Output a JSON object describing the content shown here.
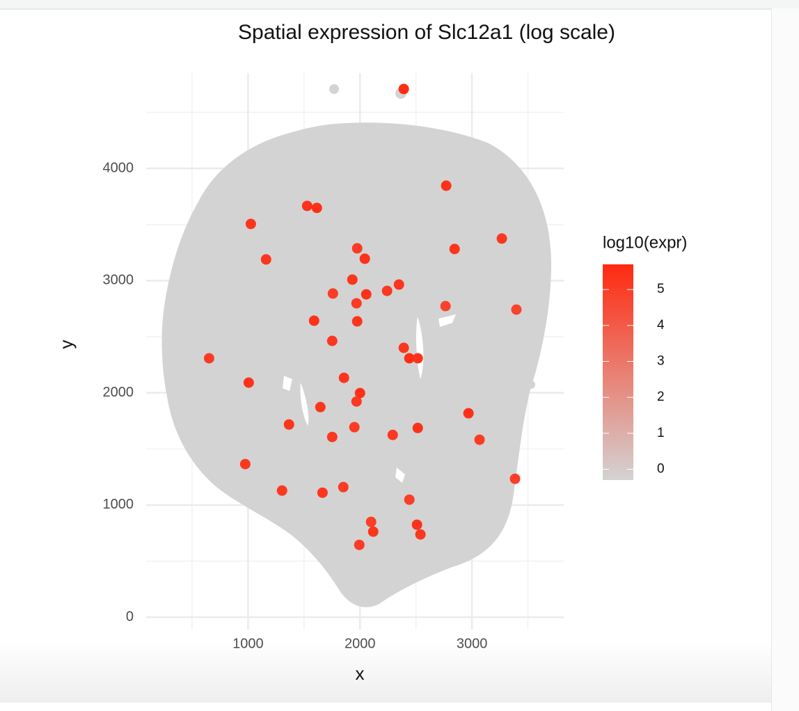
{
  "chart_data": {
    "type": "scatter",
    "title": "Spatial expression of Slc12a1 (log scale)",
    "x_label": "x",
    "y_label": "y",
    "xlim": [
      90,
      3820
    ],
    "ylim": [
      -110,
      4850
    ],
    "xticks": [
      1000,
      2000,
      3000
    ],
    "yticks": [
      0,
      1000,
      2000,
      3000,
      4000
    ],
    "xminor": [
      500,
      1500,
      2500,
      3500
    ],
    "yminor": [
      500,
      1500,
      2500,
      3500,
      4500
    ],
    "grid": true,
    "series": [
      {
        "x": [
          2391,
          2770,
          1025,
          1528,
          1615,
          1161,
          3267,
          2845,
          1975,
          2043,
          1932,
          2056,
          2242,
          2348,
          1758,
          1969,
          1975,
          1590,
          1752,
          652,
          1006,
          1857,
          2000,
          1969,
          1646,
          2441,
          2391,
          2516,
          1366,
          1752,
          1950,
          2292,
          2516,
          2969,
          3068,
          975,
          1665,
          2441,
          2509,
          2118,
          1994,
          2540,
          2099,
          1851,
          1304,
          3385,
          3397,
          2764
        ],
        "y": [
          4708,
          3846,
          3505,
          3666,
          3648,
          3189,
          3375,
          3282,
          3288,
          3195,
          3009,
          2878,
          2909,
          2965,
          2885,
          2798,
          2637,
          2643,
          2463,
          2308,
          2091,
          2134,
          1998,
          1923,
          1873,
          2308,
          2401,
          2308,
          1718,
          1607,
          1694,
          1625,
          1687,
          1818,
          1582,
          1365,
          1110,
          1048,
          825,
          763,
          645,
          738,
          850,
          1160,
          1129,
          1234,
          2742,
          2773
        ],
        "values": [
          5.6,
          5.4,
          5.3,
          5.4,
          5.5,
          5.3,
          5.2,
          5.3,
          5.1,
          5.4,
          5.3,
          5.4,
          5.2,
          5.3,
          5.0,
          5.1,
          5.3,
          5.4,
          5.2,
          5.1,
          5.4,
          5.3,
          5.5,
          5.2,
          5.3,
          5.6,
          5.3,
          5.4,
          5.3,
          5.2,
          5.1,
          5.2,
          5.4,
          5.5,
          5.1,
          5.2,
          5.3,
          5.0,
          5.4,
          5.3,
          5.1,
          5.2,
          5.0,
          5.1,
          5.2,
          5.0,
          4.8,
          4.8
        ]
      }
    ],
    "colorbar": {
      "title": "log10(expr)",
      "lim": [
        -0.3,
        5.7
      ],
      "ticks": [
        0,
        1,
        2,
        3,
        4,
        5
      ],
      "low_color": "#d3d3d3",
      "high_color": "#ff2a10"
    }
  }
}
